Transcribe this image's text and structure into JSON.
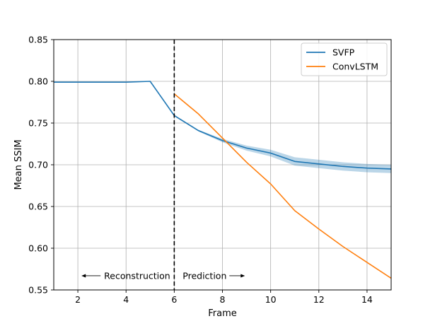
{
  "chart_data": {
    "type": "line",
    "xlabel": "Frame",
    "ylabel": "Mean SSIM",
    "xlim": [
      1,
      15
    ],
    "ylim": [
      0.55,
      0.85
    ],
    "xticks": [
      2,
      4,
      6,
      8,
      10,
      12,
      14
    ],
    "yticks": [
      0.55,
      0.6,
      0.65,
      0.7,
      0.75,
      0.8,
      0.85
    ],
    "ytick_labels": [
      "0.55",
      "0.60",
      "0.65",
      "0.70",
      "0.75",
      "0.80",
      "0.85"
    ],
    "grid": true,
    "legend_position": "upper right",
    "series": [
      {
        "name": "SVFP",
        "color": "#1f77b4",
        "x": [
          1,
          2,
          3,
          4,
          5,
          6,
          7,
          8,
          9,
          10,
          11,
          12,
          13,
          14,
          15
        ],
        "y": [
          0.799,
          0.799,
          0.799,
          0.799,
          0.8,
          0.759,
          0.741,
          0.729,
          0.72,
          0.714,
          0.704,
          0.701,
          0.698,
          0.696,
          0.695
        ],
        "band_lower": [
          0.799,
          0.799,
          0.799,
          0.799,
          0.8,
          0.758,
          0.74,
          0.727,
          0.717,
          0.71,
          0.699,
          0.696,
          0.693,
          0.691,
          0.69
        ],
        "band_upper": [
          0.799,
          0.799,
          0.799,
          0.799,
          0.8,
          0.76,
          0.742,
          0.731,
          0.723,
          0.718,
          0.709,
          0.706,
          0.703,
          0.701,
          0.7
        ]
      },
      {
        "name": "ConvLSTM",
        "color": "#ff7f0e",
        "x": [
          6,
          7,
          8,
          9,
          10,
          11,
          12,
          13,
          14,
          15
        ],
        "y": [
          0.785,
          0.761,
          0.732,
          0.703,
          0.677,
          0.645,
          0.623,
          0.602,
          0.583,
          0.564
        ]
      }
    ],
    "vline": {
      "x": 6,
      "style": "dashed",
      "color": "#000000"
    },
    "annotations": [
      {
        "text": "Reconstruction",
        "arrow": "left",
        "x": 3.8,
        "y": 0.567
      },
      {
        "text": "Prediction",
        "arrow": "right",
        "x": 7.2,
        "y": 0.567
      }
    ]
  }
}
